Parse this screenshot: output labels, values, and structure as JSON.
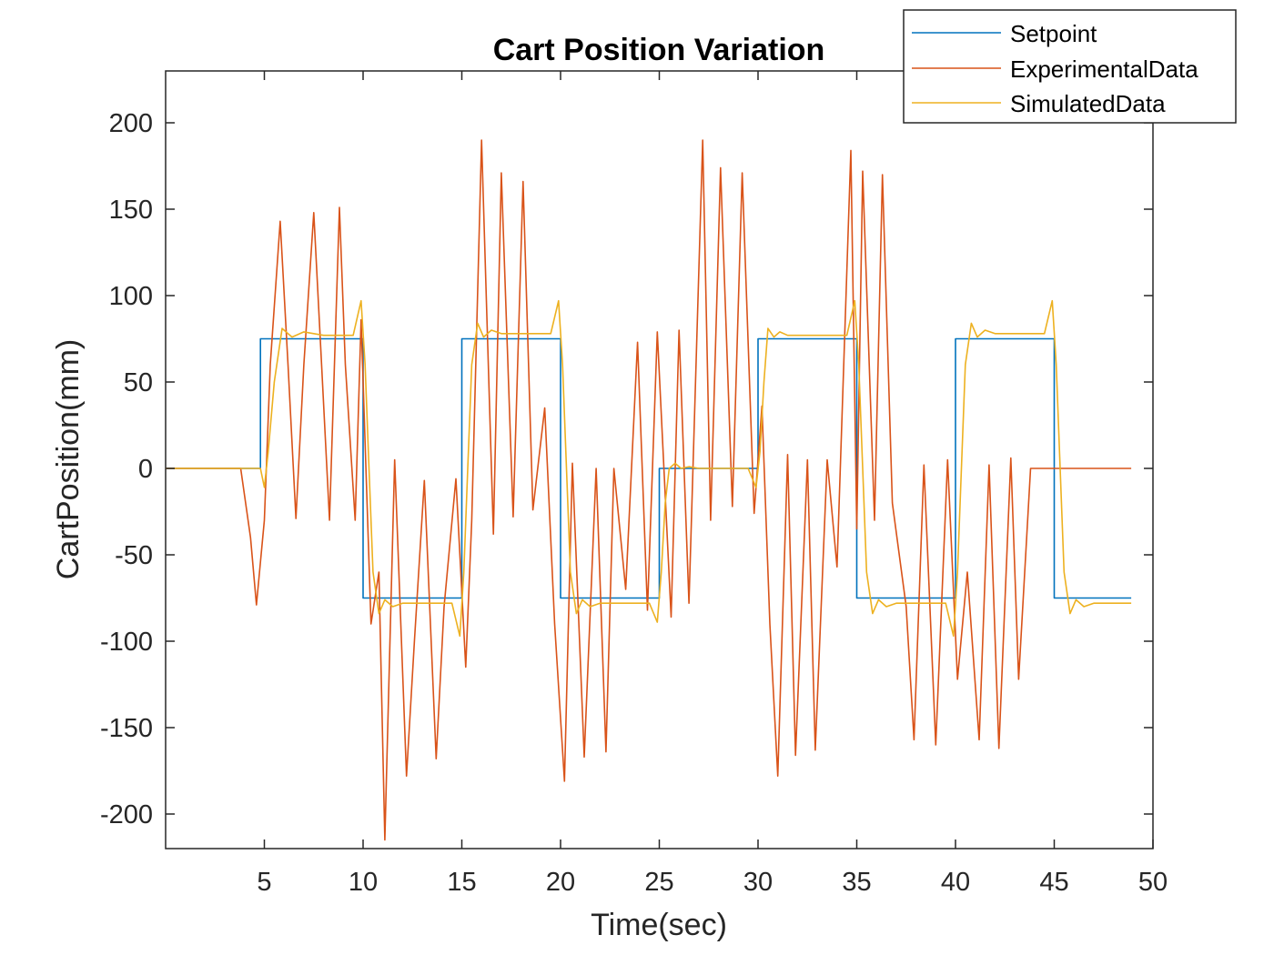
{
  "chart_data": {
    "type": "line",
    "title": "Cart Position Variation",
    "xlabel": "Time(sec)",
    "ylabel": "CartPosition(mm)",
    "xlim": [
      0,
      50
    ],
    "ylim": [
      -220,
      230
    ],
    "xticks": [
      5,
      10,
      15,
      20,
      25,
      30,
      35,
      40,
      45,
      50
    ],
    "yticks": [
      -200,
      -150,
      -100,
      -50,
      0,
      50,
      100,
      150,
      200
    ],
    "grid": false,
    "legend_position": "top-right",
    "series": [
      {
        "name": "Setpoint",
        "color": "#0072BD",
        "x": [
          0,
          4.8,
          4.8,
          10,
          10,
          15,
          15,
          20,
          20,
          25,
          25,
          30,
          30,
          35,
          35,
          40,
          40,
          45,
          45,
          48.9
        ],
        "y": [
          0,
          0,
          75,
          75,
          -75,
          -75,
          75,
          75,
          -75,
          -75,
          0,
          0,
          75,
          75,
          -75,
          -75,
          75,
          75,
          -75,
          -75
        ]
      },
      {
        "name": "ExperimentalData",
        "color": "#D95319",
        "x": [
          0,
          3.8,
          4.3,
          4.6,
          5.0,
          5.3,
          5.8,
          6.2,
          6.6,
          7.0,
          7.5,
          7.9,
          8.3,
          8.8,
          9.1,
          9.6,
          9.9,
          10.4,
          10.8,
          11.1,
          11.6,
          12.2,
          12.6,
          13.1,
          13.7,
          14.1,
          14.7,
          15.2,
          15.5,
          16.0,
          16.6,
          17.0,
          17.6,
          18.1,
          18.6,
          19.2,
          19.7,
          20.2,
          20.6,
          21.2,
          21.8,
          22.3,
          22.7,
          23.3,
          23.9,
          24.4,
          24.9,
          25.6,
          26.0,
          26.5,
          27.2,
          27.6,
          28.1,
          28.7,
          29.2,
          29.8,
          30.2,
          30.6,
          31.0,
          31.5,
          31.9,
          32.5,
          32.9,
          33.5,
          34.0,
          34.7,
          35.0,
          35.3,
          35.9,
          36.3,
          36.8,
          37.5,
          37.9,
          38.4,
          39.0,
          39.6,
          40.1,
          40.6,
          41.2,
          41.7,
          42.2,
          42.8,
          43.2,
          43.8,
          44.4,
          44.8,
          45.3,
          45.7,
          46.2,
          46.8,
          47.3,
          47.8,
          48.4,
          48.9
        ],
        "y": [
          0,
          0,
          -40,
          -79,
          -30,
          60,
          143,
          60,
          -29,
          60,
          148,
          60,
          -30,
          151,
          60,
          -30,
          86,
          -90,
          -60,
          -215,
          5,
          -178,
          -100,
          -7,
          -168,
          -80,
          -6,
          -115,
          -30,
          190,
          -38,
          171,
          -28,
          166,
          -24,
          35,
          -90,
          -181,
          3,
          -167,
          0,
          -164,
          0,
          -70,
          73,
          -82,
          79,
          -86,
          80,
          -78,
          190,
          -30,
          174,
          -22,
          171,
          -26,
          36,
          -90,
          -178,
          8,
          -166,
          5,
          -163,
          5,
          -57,
          184,
          -35,
          172,
          -30,
          170,
          -20,
          -80,
          -157,
          2,
          -160,
          5,
          -122,
          -60,
          -157,
          2,
          -162,
          6,
          -122,
          0,
          0,
          0,
          0,
          0,
          0,
          0,
          0,
          0,
          0,
          0
        ]
      },
      {
        "name": "SimulatedData",
        "color": "#EDB120",
        "x": [
          0,
          4.8,
          5.0,
          5.2,
          5.5,
          5.9,
          6.4,
          7.0,
          8.0,
          9.5,
          9.9,
          10.1,
          10.3,
          10.5,
          10.8,
          11.1,
          11.5,
          12.0,
          13.0,
          14.5,
          14.9,
          15.1,
          15.3,
          15.5,
          15.8,
          16.1,
          16.5,
          17.0,
          18.0,
          19.5,
          19.9,
          20.1,
          20.3,
          20.5,
          20.8,
          21.1,
          21.5,
          22.0,
          23.0,
          24.5,
          24.9,
          25.1,
          25.3,
          25.5,
          25.8,
          26.1,
          26.5,
          27.0,
          28.0,
          29.5,
          29.9,
          30.1,
          30.3,
          30.5,
          30.8,
          31.1,
          31.5,
          32.0,
          33.0,
          34.5,
          34.9,
          35.1,
          35.3,
          35.5,
          35.8,
          36.1,
          36.5,
          37.0,
          38.0,
          39.5,
          39.9,
          40.1,
          40.3,
          40.5,
          40.8,
          41.1,
          41.5,
          42.0,
          43.0,
          44.5,
          44.9,
          45.1,
          45.3,
          45.5,
          45.8,
          46.1,
          46.5,
          47.0,
          48.0,
          48.9
        ],
        "y": [
          0,
          0,
          -11,
          10,
          50,
          81,
          76,
          79,
          77,
          77,
          97,
          60,
          0,
          -60,
          -84,
          -76,
          -80,
          -78,
          -78,
          -78,
          -97,
          -60,
          0,
          60,
          84,
          76,
          80,
          78,
          78,
          78,
          97,
          60,
          0,
          -60,
          -84,
          -76,
          -80,
          -78,
          -78,
          -78,
          -89,
          -60,
          -20,
          0,
          3,
          0,
          1,
          0,
          0,
          0,
          -11,
          10,
          50,
          81,
          76,
          79,
          77,
          77,
          77,
          77,
          97,
          60,
          0,
          -60,
          -84,
          -76,
          -80,
          -78,
          -78,
          -78,
          -97,
          -60,
          0,
          60,
          84,
          76,
          80,
          78,
          78,
          78,
          97,
          60,
          0,
          -60,
          -84,
          -76,
          -80,
          -78,
          -78,
          -78
        ]
      }
    ]
  }
}
